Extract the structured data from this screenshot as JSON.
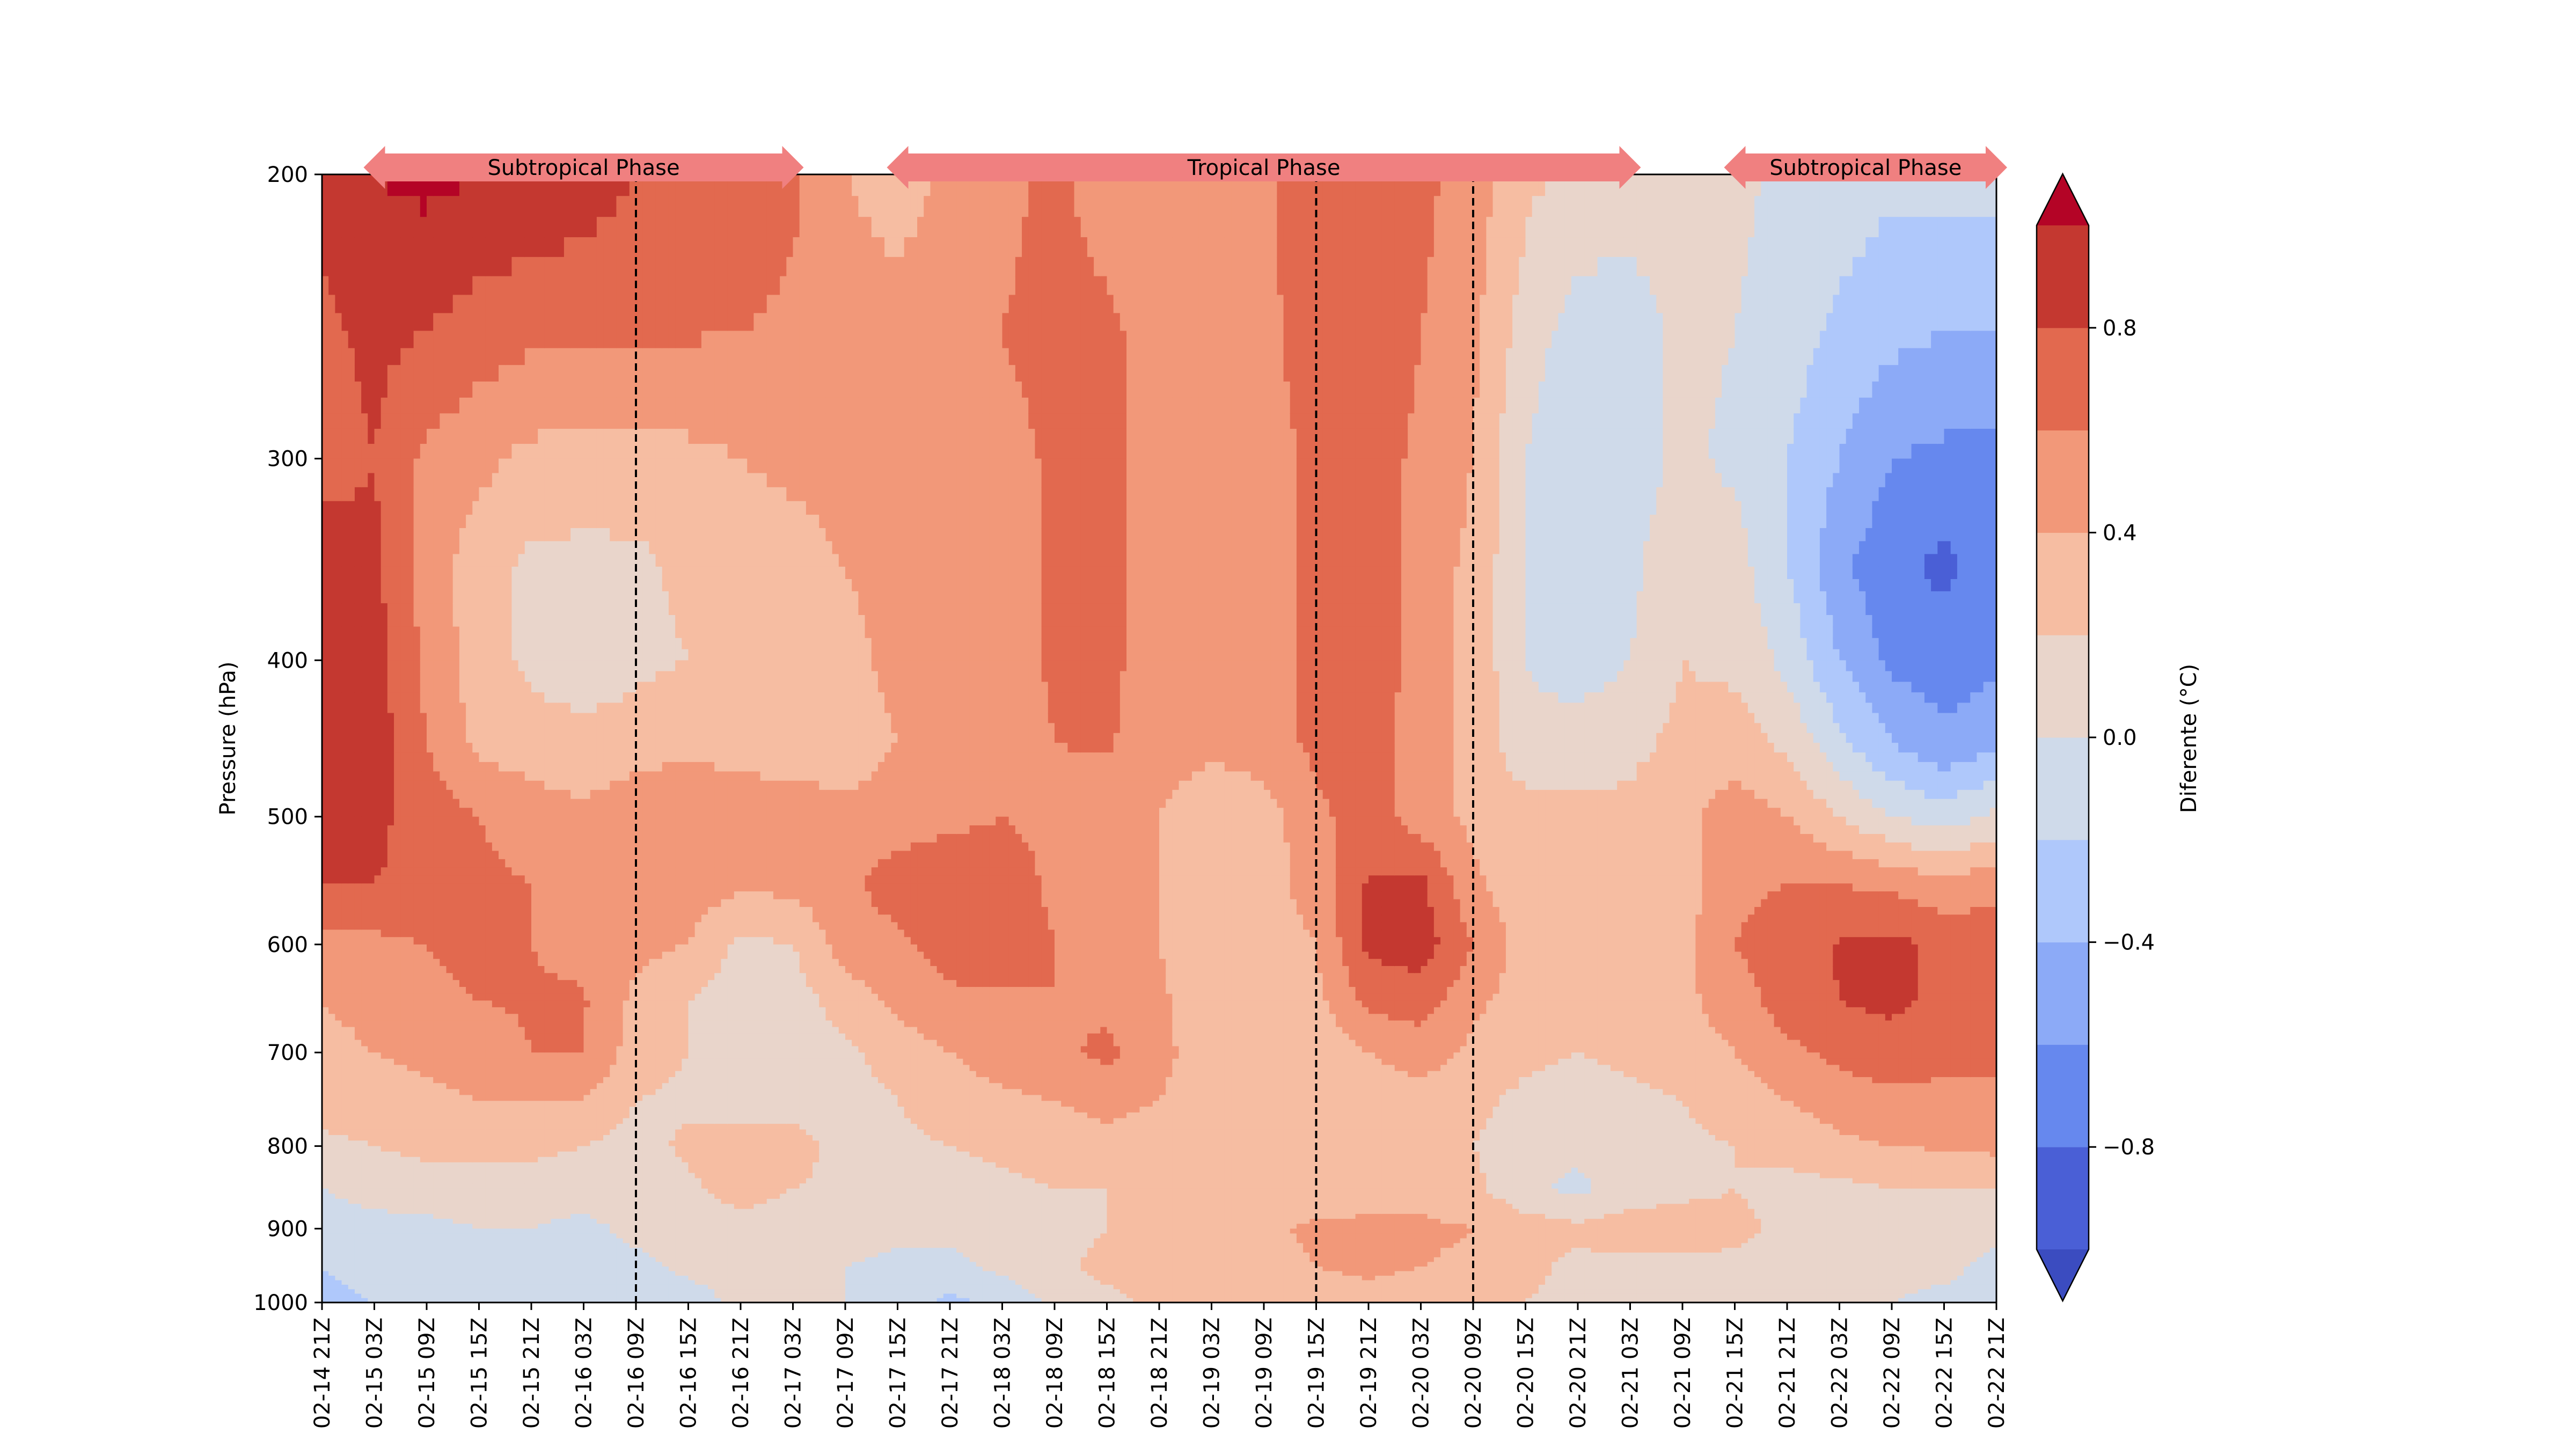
{
  "chart_data": {
    "type": "heatmap",
    "title": "",
    "xlabel": "",
    "ylabel": "Pressure (hPa)",
    "x": [
      "02-14 21Z",
      "02-15 03Z",
      "02-15 09Z",
      "02-15 15Z",
      "02-15 21Z",
      "02-16 03Z",
      "02-16 09Z",
      "02-16 15Z",
      "02-16 21Z",
      "02-17 03Z",
      "02-17 09Z",
      "02-17 15Z",
      "02-17 21Z",
      "02-18 03Z",
      "02-18 09Z",
      "02-18 15Z",
      "02-18 21Z",
      "02-19 03Z",
      "02-19 09Z",
      "02-19 15Z",
      "02-19 21Z",
      "02-20 03Z",
      "02-20 09Z",
      "02-20 15Z",
      "02-20 21Z",
      "02-21 03Z",
      "02-21 09Z",
      "02-21 15Z",
      "02-21 21Z",
      "02-22 03Z",
      "02-22 09Z",
      "02-22 15Z",
      "02-22 21Z"
    ],
    "y": [
      200,
      250,
      300,
      350,
      400,
      450,
      500,
      550,
      600,
      650,
      700,
      750,
      800,
      850,
      900,
      950,
      1000
    ],
    "y_ticks": [
      "200",
      "300",
      "400",
      "500",
      "600",
      "700",
      "800",
      "900",
      "1000"
    ],
    "y_scale": "log",
    "ylim": [
      1000,
      200
    ],
    "colorbar": {
      "label": "Diferente (°C)",
      "ticks": [
        "0.8",
        "0.4",
        "0.0",
        "−0.4",
        "−0.8"
      ],
      "levels": [
        -1.0,
        -0.8,
        -0.6,
        -0.4,
        -0.2,
        0.0,
        0.2,
        0.4,
        0.6,
        0.8,
        1.0
      ],
      "extend": "both",
      "colors": [
        "#3b4cc0",
        "#4a5fd6",
        "#6688ee",
        "#8caaf7",
        "#afc8fb",
        "#cfdaea",
        "#e9d5cb",
        "#f6bda2",
        "#f29879",
        "#e2694f",
        "#c43830",
        "#b40426"
      ]
    },
    "phases": [
      {
        "label": "Subtropical Phase",
        "start": "02-15 03Z",
        "end": "02-17 03Z"
      },
      {
        "label": "Tropical Phase",
        "start": "02-17 15Z",
        "end": "02-21 03Z"
      },
      {
        "label": "Subtropical Phase",
        "start": "02-21 15Z",
        "end": "02-22 21Z"
      }
    ],
    "vertical_lines": [
      "02-16 09Z",
      "02-19 15Z",
      "02-20 09Z"
    ],
    "phase_color": "#f08080",
    "z": [
      [
        0.85,
        1.0,
        1.05,
        1.0,
        0.95,
        0.9,
        0.8,
        0.78,
        0.78,
        0.65,
        0.4,
        0.3,
        0.45,
        0.55,
        0.65,
        0.5,
        0.45,
        0.55,
        0.55,
        0.75,
        0.8,
        0.65,
        0.5,
        0.25,
        0.15,
        0.1,
        0.1,
        0.05,
        -0.05,
        -0.1,
        -0.15,
        -0.15,
        -0.15
      ],
      [
        0.75,
        0.85,
        0.8,
        0.7,
        0.65,
        0.65,
        0.62,
        0.62,
        0.6,
        0.55,
        0.5,
        0.5,
        0.55,
        0.6,
        0.65,
        0.65,
        0.5,
        0.45,
        0.55,
        0.7,
        0.75,
        0.6,
        0.45,
        0.1,
        -0.1,
        -0.1,
        0.05,
        0.0,
        -0.1,
        -0.25,
        -0.35,
        -0.4,
        -0.4
      ],
      [
        0.7,
        0.8,
        0.55,
        0.45,
        0.35,
        0.3,
        0.32,
        0.35,
        0.4,
        0.45,
        0.5,
        0.5,
        0.5,
        0.55,
        0.62,
        0.65,
        0.5,
        0.45,
        0.5,
        0.65,
        0.7,
        0.55,
        0.4,
        0.0,
        -0.2,
        -0.1,
        0.05,
        -0.05,
        -0.2,
        -0.4,
        -0.6,
        -0.65,
        -0.65
      ],
      [
        0.95,
        0.85,
        0.5,
        0.3,
        0.15,
        0.15,
        0.15,
        0.25,
        0.3,
        0.3,
        0.4,
        0.45,
        0.5,
        0.55,
        0.62,
        0.65,
        0.5,
        0.45,
        0.5,
        0.65,
        0.75,
        0.5,
        0.35,
        0.0,
        -0.15,
        -0.05,
        0.15,
        0.1,
        -0.2,
        -0.55,
        -0.75,
        -0.85,
        -0.65
      ],
      [
        1.0,
        0.9,
        0.55,
        0.3,
        0.15,
        0.1,
        0.15,
        0.2,
        0.3,
        0.25,
        0.35,
        0.45,
        0.5,
        0.55,
        0.62,
        0.65,
        0.5,
        0.45,
        0.5,
        0.65,
        0.75,
        0.5,
        0.35,
        0.0,
        -0.1,
        0.0,
        0.2,
        0.15,
        -0.05,
        -0.4,
        -0.65,
        -0.7,
        -0.65
      ],
      [
        1.0,
        0.9,
        0.6,
        0.35,
        0.3,
        0.25,
        0.3,
        0.35,
        0.3,
        0.3,
        0.3,
        0.4,
        0.45,
        0.5,
        0.6,
        0.62,
        0.5,
        0.45,
        0.5,
        0.65,
        0.7,
        0.5,
        0.35,
        0.05,
        0.1,
        0.15,
        0.25,
        0.3,
        0.15,
        -0.15,
        -0.4,
        -0.55,
        -0.45
      ],
      [
        0.95,
        0.85,
        0.7,
        0.6,
        0.5,
        0.45,
        0.55,
        0.6,
        0.55,
        0.5,
        0.45,
        0.5,
        0.55,
        0.6,
        0.55,
        0.5,
        0.4,
        0.25,
        0.3,
        0.55,
        0.7,
        0.5,
        0.35,
        0.3,
        0.25,
        0.25,
        0.35,
        0.5,
        0.4,
        0.2,
        0.0,
        -0.1,
        0.05
      ],
      [
        0.8,
        0.8,
        0.75,
        0.65,
        0.6,
        0.6,
        0.55,
        0.5,
        0.45,
        0.45,
        0.55,
        0.7,
        0.75,
        0.72,
        0.55,
        0.45,
        0.4,
        0.25,
        0.3,
        0.5,
        0.82,
        0.85,
        0.45,
        0.25,
        0.2,
        0.25,
        0.3,
        0.55,
        0.6,
        0.6,
        0.55,
        0.45,
        0.55
      ],
      [
        0.55,
        0.55,
        0.6,
        0.65,
        0.6,
        0.55,
        0.45,
        0.4,
        0.15,
        0.2,
        0.5,
        0.55,
        0.7,
        0.8,
        0.6,
        0.5,
        0.4,
        0.2,
        0.3,
        0.4,
        0.85,
        0.9,
        0.6,
        0.3,
        0.25,
        0.3,
        0.35,
        0.6,
        0.7,
        0.82,
        0.85,
        0.75,
        0.7
      ],
      [
        0.4,
        0.45,
        0.55,
        0.6,
        0.62,
        0.62,
        0.35,
        0.2,
        0.1,
        0.1,
        0.3,
        0.45,
        0.55,
        0.55,
        0.6,
        0.55,
        0.45,
        0.2,
        0.3,
        0.35,
        0.65,
        0.7,
        0.45,
        0.3,
        0.2,
        0.3,
        0.35,
        0.5,
        0.7,
        0.8,
        0.85,
        0.75,
        0.65
      ],
      [
        0.35,
        0.4,
        0.45,
        0.5,
        0.6,
        0.6,
        0.3,
        0.2,
        0.05,
        0.05,
        0.15,
        0.3,
        0.4,
        0.5,
        0.55,
        0.65,
        0.45,
        0.3,
        0.3,
        0.25,
        0.4,
        0.5,
        0.35,
        0.25,
        0.2,
        0.25,
        0.3,
        0.4,
        0.55,
        0.65,
        0.7,
        0.65,
        0.65
      ],
      [
        0.3,
        0.3,
        0.35,
        0.4,
        0.4,
        0.4,
        0.2,
        0.15,
        0.1,
        0.1,
        0.1,
        0.2,
        0.3,
        0.35,
        0.4,
        0.45,
        0.4,
        0.3,
        0.25,
        0.25,
        0.3,
        0.3,
        0.25,
        0.15,
        0.1,
        0.15,
        0.2,
        0.3,
        0.4,
        0.5,
        0.55,
        0.55,
        0.55
      ],
      [
        0.15,
        0.2,
        0.25,
        0.25,
        0.25,
        0.2,
        0.1,
        0.25,
        0.3,
        0.3,
        0.1,
        0.15,
        0.2,
        0.25,
        0.3,
        0.35,
        0.3,
        0.25,
        0.25,
        0.25,
        0.3,
        0.25,
        0.2,
        0.1,
        0.05,
        0.1,
        0.15,
        0.2,
        0.25,
        0.35,
        0.4,
        0.42,
        0.45
      ],
      [
        0.0,
        0.05,
        0.1,
        0.1,
        0.1,
        0.08,
        0.1,
        0.15,
        0.3,
        0.2,
        0.15,
        0.1,
        0.1,
        0.15,
        0.2,
        0.2,
        0.25,
        0.25,
        0.25,
        0.25,
        0.3,
        0.3,
        0.25,
        0.05,
        -0.05,
        0.1,
        0.15,
        0.2,
        0.15,
        0.15,
        0.2,
        0.2,
        0.2
      ],
      [
        -0.05,
        -0.05,
        -0.05,
        0.0,
        0.0,
        -0.05,
        0.05,
        0.1,
        0.1,
        0.1,
        0.1,
        0.05,
        0.05,
        0.1,
        0.15,
        0.2,
        0.25,
        0.3,
        0.35,
        0.45,
        0.45,
        0.45,
        0.4,
        0.3,
        0.25,
        0.3,
        0.3,
        0.25,
        0.15,
        0.1,
        0.1,
        0.1,
        0.05
      ],
      [
        -0.2,
        -0.15,
        -0.1,
        -0.1,
        -0.05,
        -0.05,
        -0.05,
        0.05,
        0.1,
        0.1,
        0.0,
        -0.05,
        -0.05,
        0.05,
        0.15,
        0.25,
        0.3,
        0.3,
        0.3,
        0.4,
        0.45,
        0.4,
        0.35,
        0.25,
        0.15,
        0.15,
        0.15,
        0.15,
        0.1,
        0.05,
        0.05,
        0.05,
        -0.05
      ],
      [
        -0.25,
        -0.2,
        -0.15,
        -0.1,
        -0.05,
        -0.1,
        -0.2,
        -0.1,
        0.05,
        0.1,
        0.0,
        -0.1,
        -0.25,
        -0.15,
        0.05,
        0.15,
        0.25,
        0.3,
        0.3,
        0.3,
        0.3,
        0.3,
        0.25,
        0.2,
        0.15,
        0.1,
        0.1,
        0.1,
        0.05,
        0.05,
        0.0,
        -0.05,
        -0.15
      ]
    ]
  }
}
